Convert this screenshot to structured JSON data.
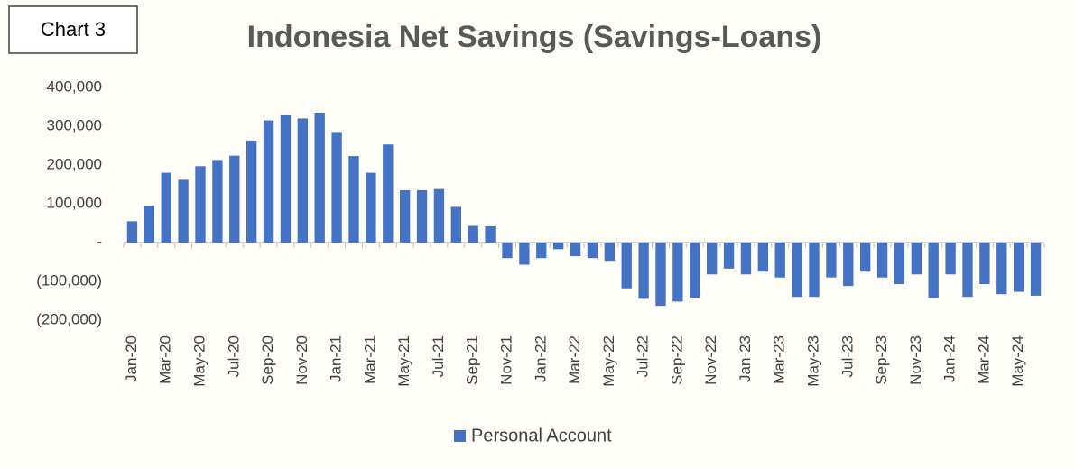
{
  "chart_data": {
    "type": "bar",
    "annotations": [
      "Chart 3"
    ],
    "title": "Indonesia Net Savings (Savings-Loans)",
    "categories": [
      "Jan-20",
      null,
      "Mar-20",
      null,
      "May-20",
      null,
      "Jul-20",
      null,
      "Sep-20",
      null,
      "Nov-20",
      null,
      "Jan-21",
      null,
      "Mar-21",
      null,
      "May-21",
      null,
      "Jul-21",
      null,
      "Sep-21",
      null,
      "Nov-21",
      null,
      "Jan-22",
      null,
      "Mar-22",
      null,
      "May-22",
      null,
      "Jul-22",
      null,
      "Sep-22",
      null,
      "Nov-22",
      null,
      "Jan-23",
      null,
      "Mar-23",
      null,
      "May-23",
      null,
      "Jul-23",
      null,
      "Sep-23",
      null,
      "Nov-23",
      null,
      "Jan-24",
      null,
      "Mar-24",
      null,
      "May-24",
      null
    ],
    "series": [
      {
        "name": "Personal Account",
        "color": "#4472c4",
        "values": [
          55000,
          95000,
          180000,
          162000,
          197000,
          213000,
          224000,
          263000,
          315000,
          328000,
          320000,
          335000,
          285000,
          223000,
          180000,
          253000,
          135000,
          135000,
          138000,
          92000,
          43000,
          42000,
          -40000,
          -57000,
          -40000,
          -17000,
          -35000,
          -40000,
          -47000,
          -118000,
          -145000,
          -163000,
          -152000,
          -142000,
          -82000,
          -67000,
          -82000,
          -75000,
          -90000,
          -140000,
          -140000,
          -90000,
          -112000,
          -75000,
          -90000,
          -107000,
          -82000,
          -143000,
          -82000,
          -140000,
          -107000,
          -133000,
          -127000,
          -137000
        ]
      }
    ],
    "ylim": [
      -200000,
      400000
    ],
    "yticks": [
      {
        "value": -200000,
        "label": "(200,000)"
      },
      {
        "value": -100000,
        "label": "(100,000)"
      },
      {
        "value": 0,
        "label": "-"
      },
      {
        "value": 100000,
        "label": "100,000"
      },
      {
        "value": 200000,
        "label": "200,000"
      },
      {
        "value": 300000,
        "label": "300,000"
      },
      {
        "value": 400000,
        "label": "400,000"
      }
    ],
    "legend": "bottom"
  }
}
